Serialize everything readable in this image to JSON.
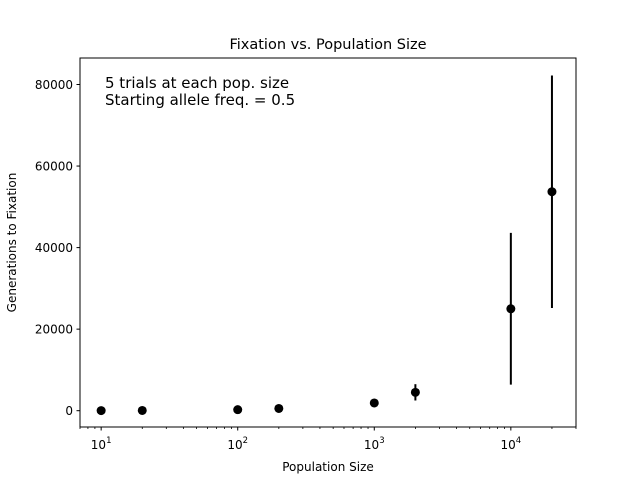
{
  "chart_data": {
    "type": "scatter",
    "title": "Fixation vs. Population Size",
    "xlabel": "Population Size",
    "ylabel": "Generations to Fixation",
    "x_scale": "log",
    "xlim": [
      7,
      30000
    ],
    "ylim": [
      -4000,
      86500
    ],
    "x_ticks": [
      {
        "value": 10,
        "base": "10",
        "exp": "1"
      },
      {
        "value": 100,
        "base": "10",
        "exp": "2"
      },
      {
        "value": 1000,
        "base": "10",
        "exp": "3"
      },
      {
        "value": 10000,
        "base": "10",
        "exp": "4"
      }
    ],
    "y_ticks": [
      {
        "value": 0,
        "label": "0"
      },
      {
        "value": 20000,
        "label": "20000"
      },
      {
        "value": 40000,
        "label": "40000"
      },
      {
        "value": 60000,
        "label": "60000"
      },
      {
        "value": 80000,
        "label": "80000"
      }
    ],
    "annotation_lines": [
      "5 trials at each pop. size",
      "Starting allele freq. = 0.5"
    ],
    "grid": false,
    "legend": "none",
    "color": "#000000",
    "points": [
      {
        "x": 10,
        "y": 20,
        "yerr": 10
      },
      {
        "x": 20,
        "y": 60,
        "yerr": 30
      },
      {
        "x": 100,
        "y": 250,
        "yerr": 120
      },
      {
        "x": 200,
        "y": 550,
        "yerr": 250
      },
      {
        "x": 1000,
        "y": 1900,
        "yerr": 800
      },
      {
        "x": 2000,
        "y": 4500,
        "yerr": 2000
      },
      {
        "x": 10000,
        "y": 25000,
        "yerr": 18600
      },
      {
        "x": 20000,
        "y": 53700,
        "yerr": 28500
      }
    ]
  }
}
